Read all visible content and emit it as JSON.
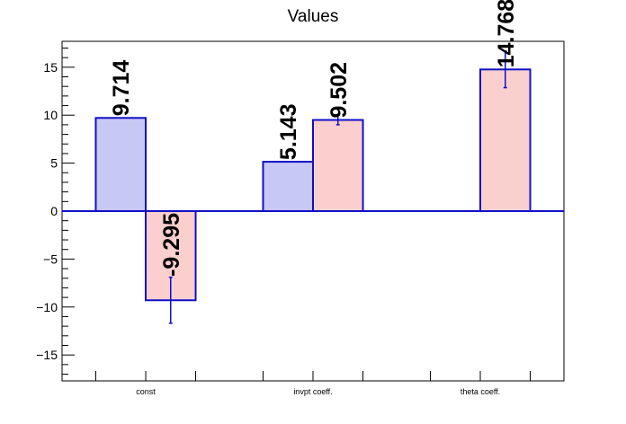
{
  "chart_data": {
    "type": "bar",
    "title": "Values",
    "categories": [
      "const",
      "invpt coeff.",
      "theta coeff."
    ],
    "series": [
      {
        "color": "#c8c8f5",
        "values": [
          9.714,
          5.143,
          null
        ],
        "labels": [
          "9.714",
          "5.143",
          ""
        ],
        "errors": [
          null,
          null,
          null
        ]
      },
      {
        "color": "#fccfcf",
        "values": [
          -9.295,
          9.502,
          14.768
        ],
        "labels": [
          "-9.295",
          "9.502",
          "14.768"
        ],
        "errors": [
          2.4,
          0.5,
          1.9
        ]
      }
    ],
    "bar_edge_color": "#1010c8",
    "ylim": [
      -17.7,
      17.7
    ],
    "yticks": [
      -15,
      -10,
      -5,
      0,
      5,
      10,
      15
    ],
    "ytick_labels": [
      "−15",
      "−10",
      "−5",
      "0",
      "5",
      "10",
      "15"
    ],
    "grid": false,
    "legend": "none"
  }
}
